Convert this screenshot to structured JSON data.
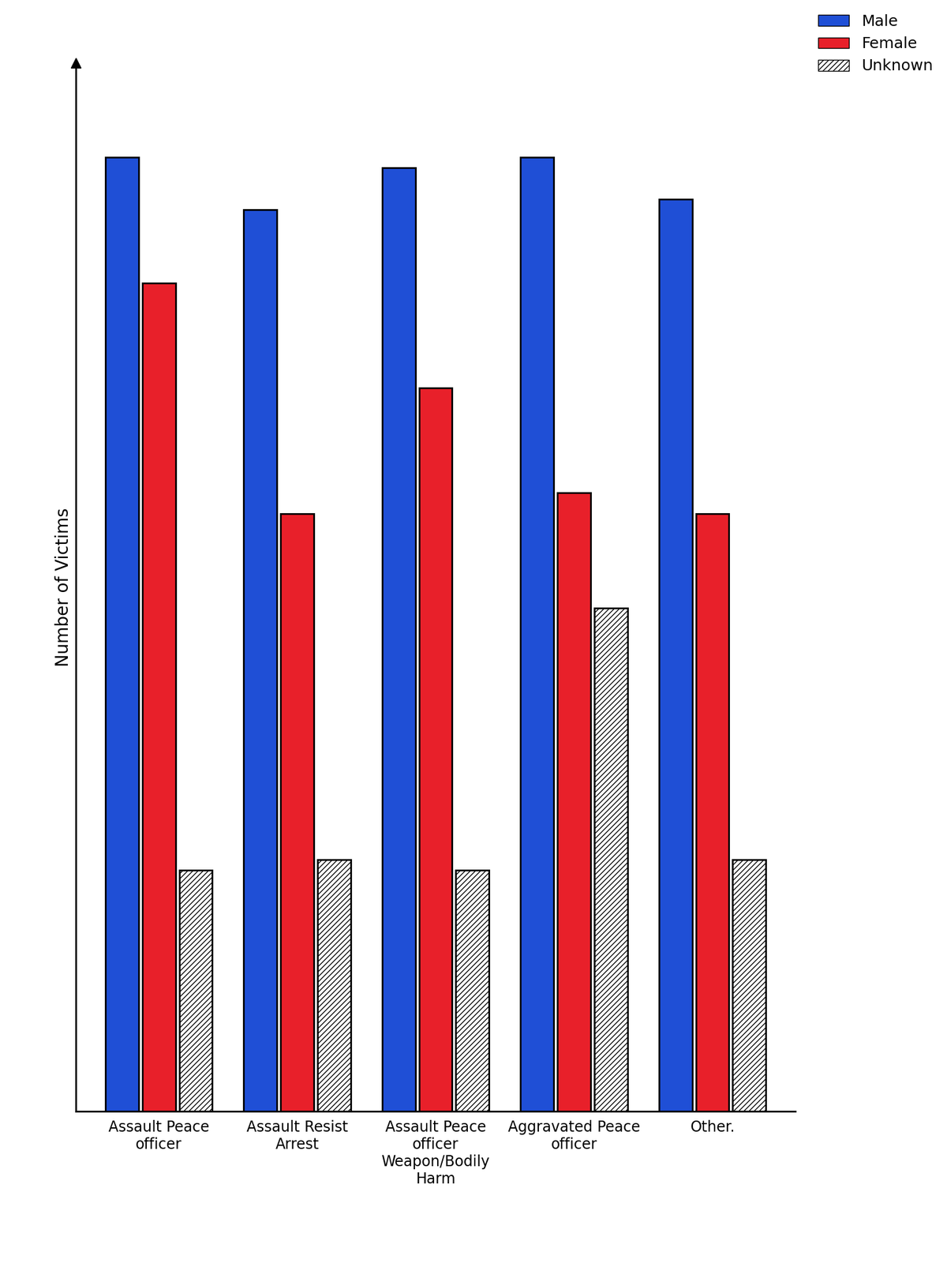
{
  "chart_data": {
    "type": "bar",
    "y_label": "Number of Victims",
    "categories": [
      "Assault Peace officer",
      "Assault Resist Arrest",
      "Assault Peace officer Weapon/Bodily Harm",
      "Aggravated Peace officer",
      "Other."
    ],
    "series": [
      {
        "name": "Male",
        "color": "#1f4fd6",
        "values": [
          91,
          86,
          90,
          91,
          87
        ]
      },
      {
        "name": "Female",
        "color": "#e8202a",
        "values": [
          79,
          57,
          69,
          59,
          57
        ]
      },
      {
        "name": "Unknown",
        "color": "#ffffff",
        "values": [
          23,
          24,
          23,
          48,
          24
        ]
      }
    ],
    "ylim": [
      0,
      100
    ],
    "tick_labels": "x",
    "legend": "upper right",
    "grid": false
  }
}
